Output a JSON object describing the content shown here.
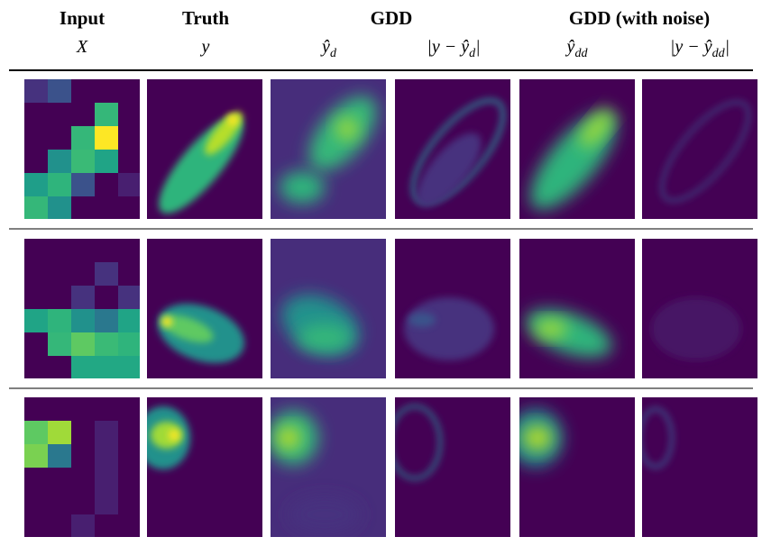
{
  "header": {
    "groups": [
      "Input",
      "Truth",
      "GDD",
      "GDD (with noise)"
    ],
    "symbols": [
      {
        "base": "X"
      },
      {
        "base": "y"
      },
      {
        "base": "ŷ",
        "sub": "d"
      },
      {
        "base": "|y − ŷ",
        "sub": "d",
        "end": "|"
      },
      {
        "base": "ŷ",
        "sub": "dd"
      },
      {
        "base": "|y − ŷ",
        "sub": "dd",
        "end": "|"
      }
    ]
  }
}
